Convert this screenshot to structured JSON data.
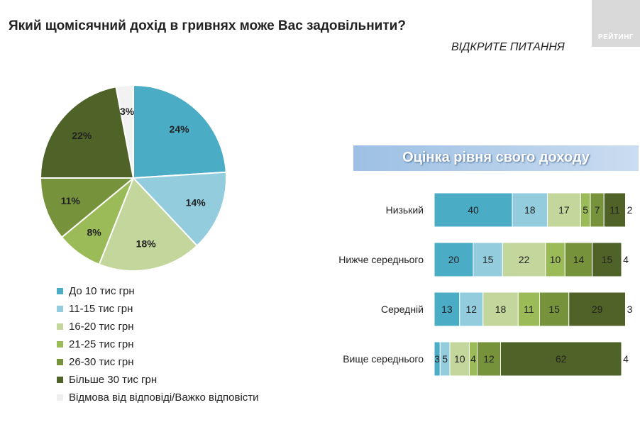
{
  "title": "Який щомісячний дохід в гривнях може Вас задовільнити?",
  "open_question": "ВІДКРИТЕ ПИТАННЯ",
  "logo_text": "РЕЙТИНГ",
  "banner": "Оцінка рівня свого доходу",
  "colors": [
    "#4bacc6",
    "#93cddd",
    "#c3d69b",
    "#9bbb59",
    "#76933c",
    "#4f6228",
    "#f2f2f2"
  ],
  "chart_data": [
    {
      "type": "pie",
      "categories": [
        "До 10 тис грн",
        "11-15 тис грн",
        "16-20 тис грн",
        "21-25 тис грн",
        "26-30 тис грн",
        "Більше 30 тис грн",
        "Відмова від відповіді/Важко відповісти"
      ],
      "values": [
        24,
        14,
        18,
        8,
        11,
        22,
        3
      ],
      "legend": "bottom-left"
    },
    {
      "type": "bar",
      "orientation": "horizontal",
      "stacked": true,
      "categories": [
        "Низький",
        "Нижче середнього",
        "Середній",
        "Вище середнього"
      ],
      "series": [
        {
          "name": "До 10 тис грн",
          "values": [
            40,
            20,
            13,
            3
          ]
        },
        {
          "name": "11-15 тис грн",
          "values": [
            18,
            15,
            12,
            5
          ]
        },
        {
          "name": "16-20 тис грн",
          "values": [
            17,
            22,
            18,
            10
          ]
        },
        {
          "name": "21-25 тис грн",
          "values": [
            5,
            10,
            11,
            4
          ]
        },
        {
          "name": "26-30 тис грн",
          "values": [
            7,
            14,
            15,
            12
          ]
        },
        {
          "name": "Більше 30 тис грн",
          "values": [
            11,
            15,
            29,
            62
          ]
        },
        {
          "name": "Відмова від відповіді/Важко відповісти",
          "values": [
            2,
            4,
            3,
            4
          ]
        }
      ]
    }
  ]
}
